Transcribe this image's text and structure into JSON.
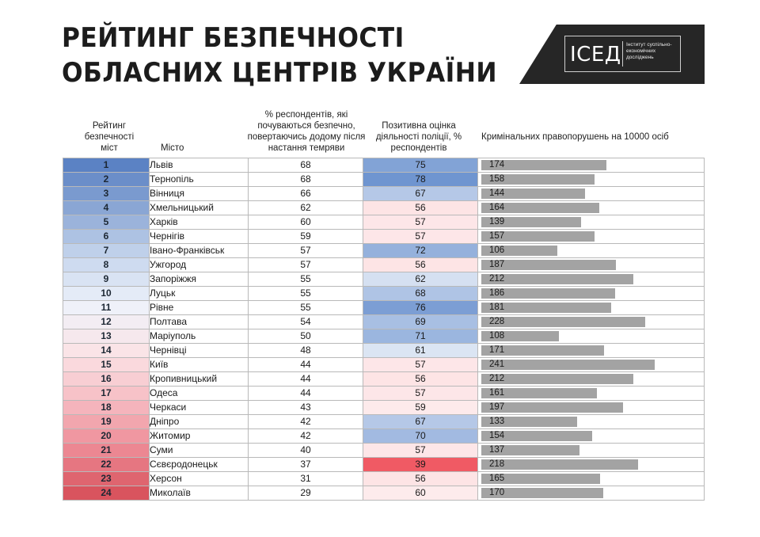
{
  "title": {
    "line1": "РЕЙТИНГ БЕЗПЕЧНОСТІ",
    "line2": "ОБЛАСНИХ ЦЕНТРІВ УКРАЇНИ"
  },
  "logo": {
    "text": "ІСЕД",
    "subtitle": "Інститут суспільно-економічних досліджень"
  },
  "headers": {
    "rank": "Рейтинг безпечності міст",
    "city": "Місто",
    "safe": "% респондентів, які почуваються безпечно, повертаючись додому після настання темряви",
    "police": "Позитивна оцінка діяльності поліції, % респондентів",
    "crime": "Кримінальних правопорушень на 10000 осіб"
  },
  "colors": {
    "rank_scale": [
      "#5b82c4",
      "#8ea9d6",
      "#c9d8ee",
      "#eef2fa",
      "#fbe3e6",
      "#f6bdc4",
      "#ee8c97",
      "#d9545e"
    ],
    "police_high": "#6f95d0",
    "police_low": "#f05a64",
    "crime_bar": "#a3a3a3"
  },
  "rows": [
    {
      "rank": "1",
      "city": "Львів",
      "safe": "68",
      "police": "75",
      "crime": "174"
    },
    {
      "rank": "2",
      "city": "Тернопіль",
      "safe": "68",
      "police": "78",
      "crime": "158"
    },
    {
      "rank": "3",
      "city": "Вінниця",
      "safe": "66",
      "police": "67",
      "crime": "144"
    },
    {
      "rank": "4",
      "city": "Хмельницький",
      "safe": "62",
      "police": "56",
      "crime": "164"
    },
    {
      "rank": "5",
      "city": "Харків",
      "safe": "60",
      "police": "57",
      "crime": "139"
    },
    {
      "rank": "6",
      "city": "Чернігів",
      "safe": "59",
      "police": "57",
      "crime": "157"
    },
    {
      "rank": "7",
      "city": "Івано-Франківськ",
      "safe": "57",
      "police": "72",
      "crime": "106"
    },
    {
      "rank": "8",
      "city": "Ужгород",
      "safe": "57",
      "police": "56",
      "crime": "187"
    },
    {
      "rank": "9",
      "city": "Запоріжжя",
      "safe": "55",
      "police": "62",
      "crime": "212"
    },
    {
      "rank": "10",
      "city": "Луцьк",
      "safe": "55",
      "police": "68",
      "crime": "186"
    },
    {
      "rank": "11",
      "city": "Рівне",
      "safe": "55",
      "police": "76",
      "crime": "181"
    },
    {
      "rank": "12",
      "city": "Полтава",
      "safe": "54",
      "police": "69",
      "crime": "228"
    },
    {
      "rank": "13",
      "city": "Маріуполь",
      "safe": "50",
      "police": "71",
      "crime": "108"
    },
    {
      "rank": "14",
      "city": "Чернівці",
      "safe": "48",
      "police": "61",
      "crime": "171"
    },
    {
      "rank": "15",
      "city": "Київ",
      "safe": "44",
      "police": "57",
      "crime": "241"
    },
    {
      "rank": "16",
      "city": "Кропивницький",
      "safe": "44",
      "police": "56",
      "crime": "212"
    },
    {
      "rank": "17",
      "city": "Одеса",
      "safe": "44",
      "police": "57",
      "crime": "161"
    },
    {
      "rank": "18",
      "city": "Черкаси",
      "safe": "43",
      "police": "59",
      "crime": "197"
    },
    {
      "rank": "19",
      "city": "Дніпро",
      "safe": "42",
      "police": "67",
      "crime": "133"
    },
    {
      "rank": "20",
      "city": "Житомир",
      "safe": "42",
      "police": "70",
      "crime": "154"
    },
    {
      "rank": "21",
      "city": "Суми",
      "safe": "40",
      "police": "57",
      "crime": "137"
    },
    {
      "rank": "22",
      "city": "Сєвєродонецьк",
      "safe": "37",
      "police": "39",
      "crime": "218"
    },
    {
      "rank": "23",
      "city": "Херсон",
      "safe": "31",
      "police": "56",
      "crime": "165"
    },
    {
      "rank": "24",
      "city": "Миколаїв",
      "safe": "29",
      "police": "60",
      "crime": "170"
    }
  ]
}
